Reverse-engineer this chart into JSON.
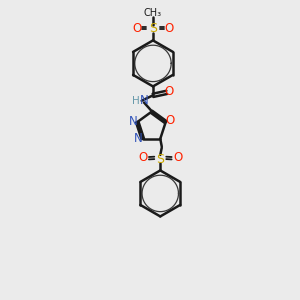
{
  "bg_color": "#ebebeb",
  "line_color": "#1a1a1a",
  "bond_width": 1.8,
  "colors": {
    "N": "#3355bb",
    "O": "#ff2200",
    "S": "#ccaa00",
    "C": "#1a1a1a",
    "H": "#6699aa"
  },
  "scale": 1.0
}
